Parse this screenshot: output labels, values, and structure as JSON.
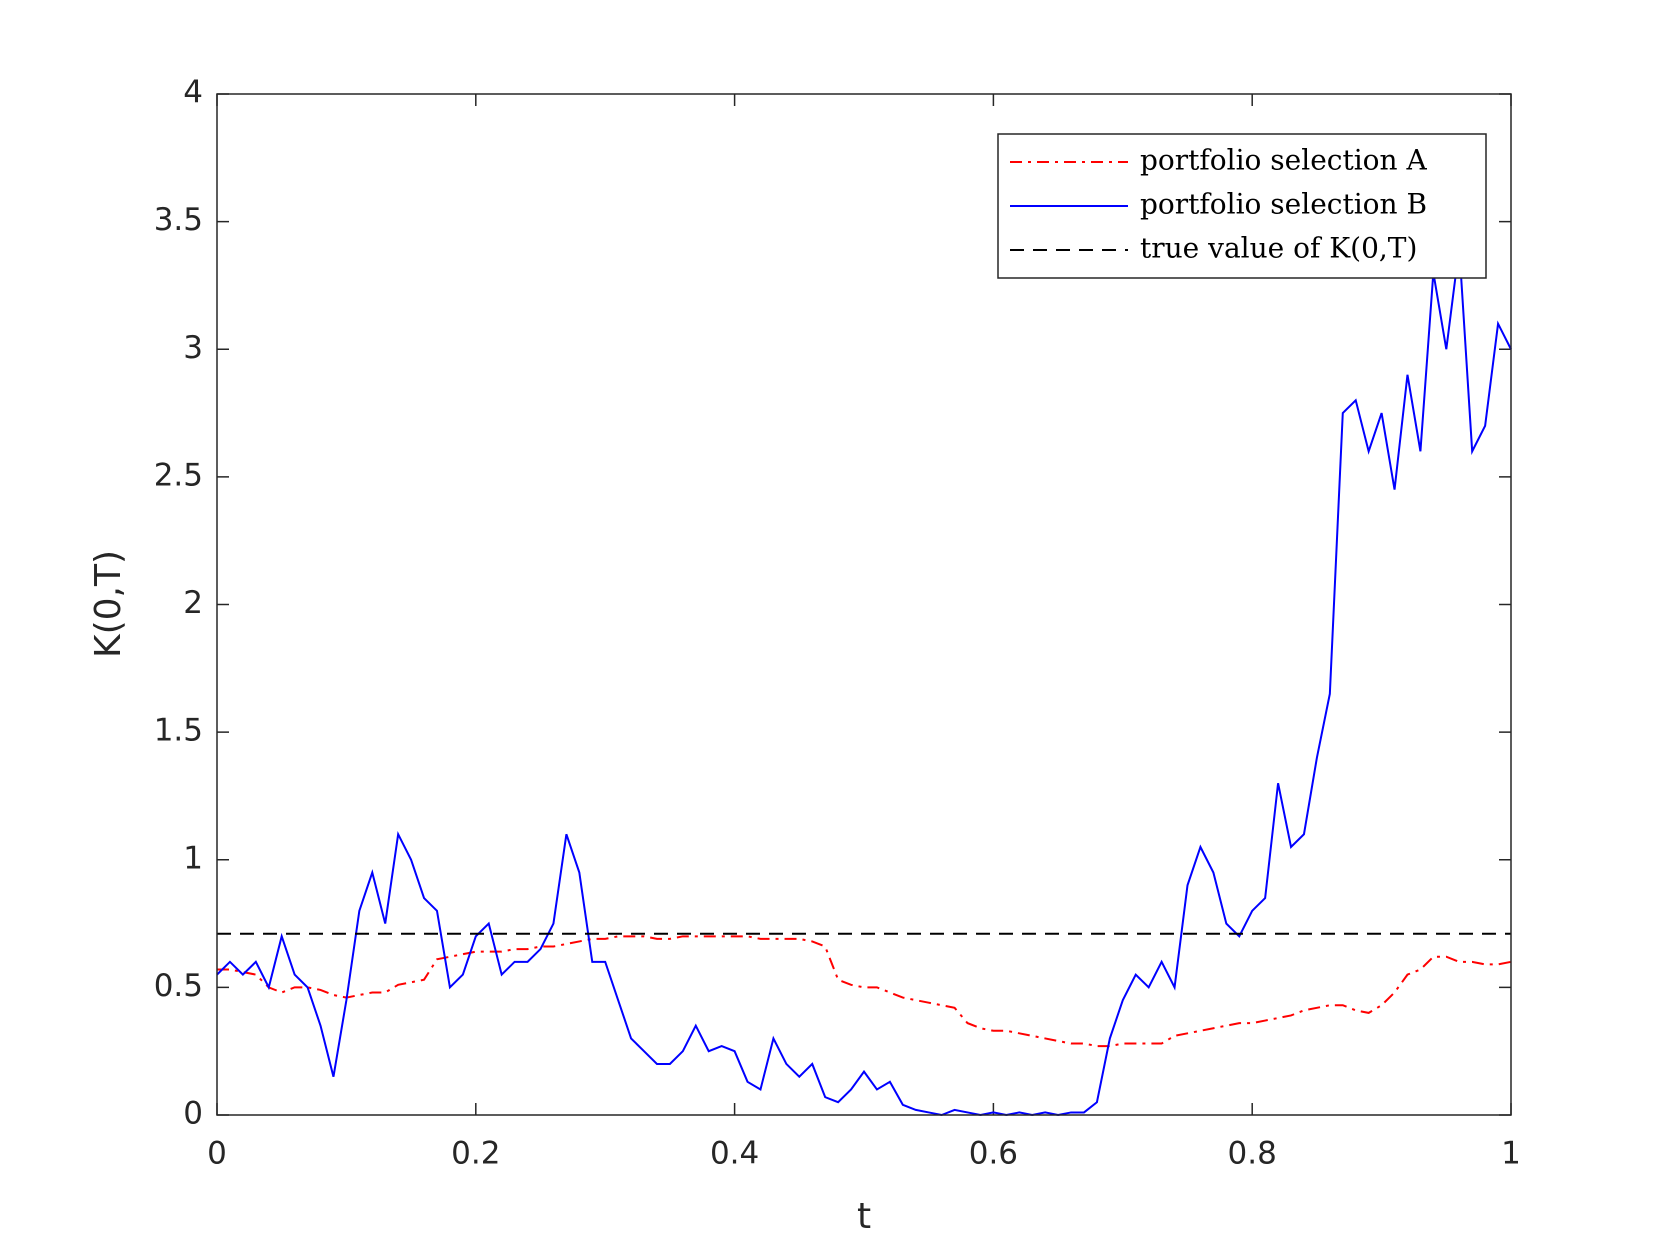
{
  "chart_data": {
    "type": "line",
    "xlabel": "t",
    "ylabel": "K(0,T)",
    "xlim": [
      0,
      1
    ],
    "ylim": [
      0,
      4
    ],
    "xticks": [
      0,
      0.2,
      0.4,
      0.6,
      0.8,
      1
    ],
    "yticks": [
      0,
      0.5,
      1,
      1.5,
      2,
      2.5,
      3,
      3.5,
      4
    ],
    "legend_position": "upper right",
    "x": [
      0,
      0.01,
      0.02,
      0.03,
      0.04,
      0.05,
      0.06,
      0.07,
      0.08,
      0.09,
      0.1,
      0.11,
      0.12,
      0.13,
      0.14,
      0.15,
      0.16,
      0.17,
      0.18,
      0.19,
      0.2,
      0.21,
      0.22,
      0.23,
      0.24,
      0.25,
      0.26,
      0.27,
      0.28,
      0.29,
      0.3,
      0.31,
      0.32,
      0.33,
      0.34,
      0.35,
      0.36,
      0.37,
      0.38,
      0.39,
      0.4,
      0.41,
      0.42,
      0.43,
      0.44,
      0.45,
      0.46,
      0.47,
      0.48,
      0.49,
      0.5,
      0.51,
      0.52,
      0.53,
      0.54,
      0.55,
      0.56,
      0.57,
      0.58,
      0.59,
      0.6,
      0.61,
      0.62,
      0.63,
      0.64,
      0.65,
      0.66,
      0.67,
      0.68,
      0.69,
      0.7,
      0.71,
      0.72,
      0.73,
      0.74,
      0.75,
      0.76,
      0.77,
      0.78,
      0.79,
      0.8,
      0.81,
      0.82,
      0.83,
      0.84,
      0.85,
      0.86,
      0.87,
      0.88,
      0.89,
      0.9,
      0.91,
      0.92,
      0.93,
      0.94,
      0.95,
      0.96,
      0.97,
      0.98,
      0.99,
      1
    ],
    "series": [
      {
        "name": "portfolio selection A",
        "color": "#ff0000",
        "dash": "dashdot",
        "values": [
          0.57,
          0.57,
          0.56,
          0.55,
          0.5,
          0.48,
          0.5,
          0.5,
          0.49,
          0.47,
          0.46,
          0.47,
          0.48,
          0.48,
          0.51,
          0.52,
          0.53,
          0.61,
          0.62,
          0.63,
          0.64,
          0.64,
          0.64,
          0.65,
          0.65,
          0.66,
          0.66,
          0.67,
          0.68,
          0.69,
          0.69,
          0.7,
          0.7,
          0.7,
          0.69,
          0.69,
          0.7,
          0.7,
          0.7,
          0.7,
          0.7,
          0.7,
          0.69,
          0.69,
          0.69,
          0.69,
          0.68,
          0.66,
          0.53,
          0.51,
          0.5,
          0.5,
          0.48,
          0.46,
          0.45,
          0.44,
          0.43,
          0.42,
          0.36,
          0.34,
          0.33,
          0.33,
          0.32,
          0.31,
          0.3,
          0.29,
          0.28,
          0.28,
          0.27,
          0.27,
          0.28,
          0.28,
          0.28,
          0.28,
          0.31,
          0.32,
          0.33,
          0.34,
          0.35,
          0.36,
          0.36,
          0.37,
          0.38,
          0.39,
          0.41,
          0.42,
          0.43,
          0.43,
          0.41,
          0.4,
          0.43,
          0.48,
          0.55,
          0.57,
          0.62,
          0.62,
          0.6,
          0.6,
          0.59,
          0.59,
          0.6
        ]
      },
      {
        "name": "portfolio selection B",
        "color": "#0000ff",
        "dash": "solid",
        "values": [
          0.55,
          0.6,
          0.55,
          0.6,
          0.5,
          0.7,
          0.55,
          0.5,
          0.35,
          0.15,
          0.45,
          0.8,
          0.95,
          0.75,
          1.1,
          1.0,
          0.85,
          0.8,
          0.5,
          0.55,
          0.7,
          0.75,
          0.55,
          0.6,
          0.6,
          0.65,
          0.75,
          1.1,
          0.95,
          0.6,
          0.6,
          0.45,
          0.3,
          0.25,
          0.2,
          0.2,
          0.25,
          0.35,
          0.25,
          0.27,
          0.25,
          0.13,
          0.1,
          0.3,
          0.2,
          0.15,
          0.2,
          0.07,
          0.05,
          0.1,
          0.17,
          0.1,
          0.13,
          0.04,
          0.02,
          0.01,
          0,
          0.02,
          0.01,
          0,
          0.01,
          0,
          0.01,
          0,
          0.01,
          0,
          0.01,
          0.01,
          0.05,
          0.3,
          0.45,
          0.55,
          0.5,
          0.6,
          0.5,
          0.9,
          1.05,
          0.95,
          0.75,
          0.7,
          0.8,
          0.85,
          1.3,
          1.05,
          1.1,
          1.4,
          1.65,
          2.75,
          2.8,
          2.6,
          2.75,
          2.45,
          2.9,
          2.6,
          3.3,
          3.0,
          3.4,
          2.6,
          2.7,
          3.1,
          3.0
        ]
      },
      {
        "name": "true value of K(0,T)",
        "color": "#000000",
        "dash": "dashed",
        "x": [
          0,
          1
        ],
        "values": [
          0.71,
          0.71
        ]
      }
    ]
  }
}
